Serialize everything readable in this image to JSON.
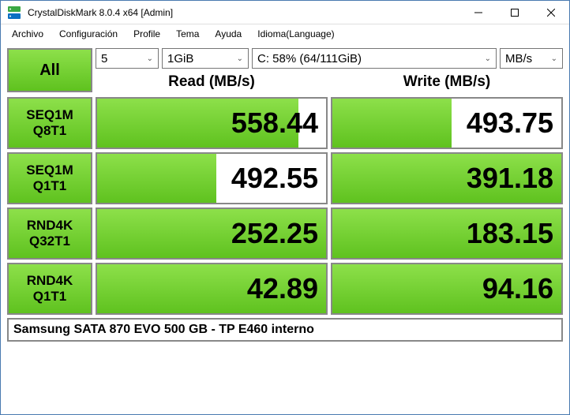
{
  "window": {
    "title": "CrystalDiskMark 8.0.4 x64 [Admin]",
    "icon_colors": {
      "top": "#3aa843",
      "bottom": "#0b6fc2"
    }
  },
  "menu": [
    "Archivo",
    "Configuración",
    "Profile",
    "Tema",
    "Ayuda",
    "Idioma(Language)"
  ],
  "controls": {
    "all_label": "All",
    "runs": "5",
    "size": "1GiB",
    "drive": "C: 58% (64/111GiB)",
    "unit": "MB/s"
  },
  "headers": {
    "read": "Read (MB/s)",
    "write": "Write (MB/s)"
  },
  "tests": [
    {
      "name": [
        "SEQ1M",
        "Q8T1"
      ],
      "read": "558.44",
      "read_pct": 88,
      "write": "493.75",
      "write_pct": 52
    },
    {
      "name": [
        "SEQ1M",
        "Q1T1"
      ],
      "read": "492.55",
      "read_pct": 52,
      "write": "391.18",
      "write_pct": 100
    },
    {
      "name": [
        "RND4K",
        "Q32T1"
      ],
      "read": "252.25",
      "read_pct": 100,
      "write": "183.15",
      "write_pct": 100
    },
    {
      "name": [
        "RND4K",
        "Q1T1"
      ],
      "read": "42.89",
      "read_pct": 100,
      "write": "94.16",
      "write_pct": 100
    }
  ],
  "footer": "Samsung SATA 870 EVO 500 GB - TP E460 interno",
  "colors": {
    "green_top": "#8de04a",
    "green_bot": "#5fc21f",
    "border": "#888888",
    "bg": "#ffffff"
  }
}
